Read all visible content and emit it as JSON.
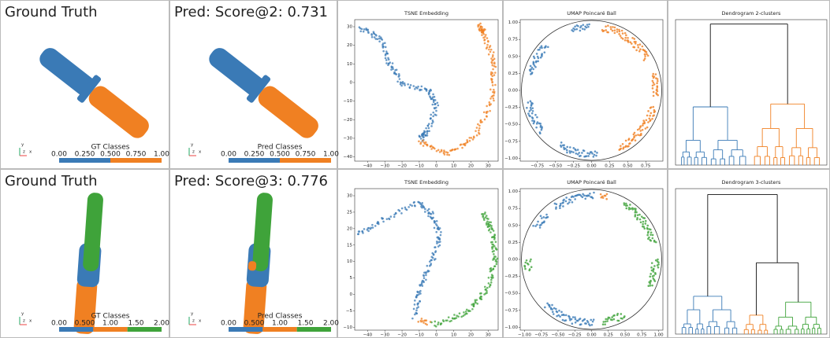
{
  "rows": [
    {
      "ground_truth": {
        "title": "Ground Truth",
        "legend_title": "GT Classes",
        "legend_ticks": [
          "0.00",
          "0.250",
          "0.500",
          "0.750",
          "1.00"
        ],
        "axes": [
          "y",
          "z",
          "x"
        ]
      },
      "prediction": {
        "title": "Pred: Score@2: 0.731",
        "legend_title": "Pred Classes",
        "legend_ticks": [
          "0.00",
          "0.250",
          "0.500",
          "0.750",
          "1.00"
        ],
        "axes": [
          "y",
          "z",
          "x"
        ]
      },
      "tsne": {
        "title": "TSNE Embedding",
        "xticks": [
          "−40",
          "−30",
          "−20",
          "−10",
          "0",
          "10",
          "20",
          "30"
        ],
        "yticks": [
          "30",
          "20",
          "10",
          "0",
          "−10",
          "−20",
          "−30",
          "−40"
        ]
      },
      "umap": {
        "title": "UMAP Poincaré Ball",
        "xticks": [
          "−0.75",
          "−0.50",
          "−0.25",
          "0.00",
          "0.25",
          "0.50",
          "0.75"
        ],
        "yticks": [
          "1.00",
          "0.75",
          "0.50",
          "0.25",
          "0.00",
          "−0.25",
          "−0.50",
          "−0.75",
          "−1.00"
        ]
      },
      "dendrogram": {
        "title": "Dendrogram 2-clusters"
      }
    },
    {
      "ground_truth": {
        "title": "Ground Truth",
        "legend_title": "GT Classes",
        "legend_ticks": [
          "0.00",
          "0.500",
          "1.00",
          "1.50",
          "2.00"
        ],
        "axes": [
          "y",
          "z",
          "x"
        ]
      },
      "prediction": {
        "title": "Pred: Score@3: 0.776",
        "legend_title": "Pred Classes",
        "legend_ticks": [
          "0.00",
          "0.500",
          "1.00",
          "1.50",
          "2.00"
        ],
        "axes": [
          "y",
          "z",
          "x"
        ]
      },
      "tsne": {
        "title": "TSNE Embedding",
        "xticks": [
          "−40",
          "−30",
          "−20",
          "−10",
          "0",
          "10",
          "20",
          "30"
        ],
        "yticks": [
          "30",
          "25",
          "20",
          "15",
          "10",
          "5",
          "0",
          "−5",
          "−10"
        ]
      },
      "umap": {
        "title": "UMAP Poincaré Ball",
        "xticks": [
          "−1.00",
          "−0.75",
          "−0.50",
          "−0.25",
          "0.00",
          "0.25",
          "0.50",
          "0.75",
          "1.00"
        ],
        "yticks": [
          "1.00",
          "0.75",
          "0.50",
          "0.25",
          "0.00",
          "−0.25",
          "−0.50",
          "−0.75",
          "−1.00"
        ]
      },
      "dendrogram": {
        "title": "Dendrogram 3-clusters"
      }
    }
  ]
}
